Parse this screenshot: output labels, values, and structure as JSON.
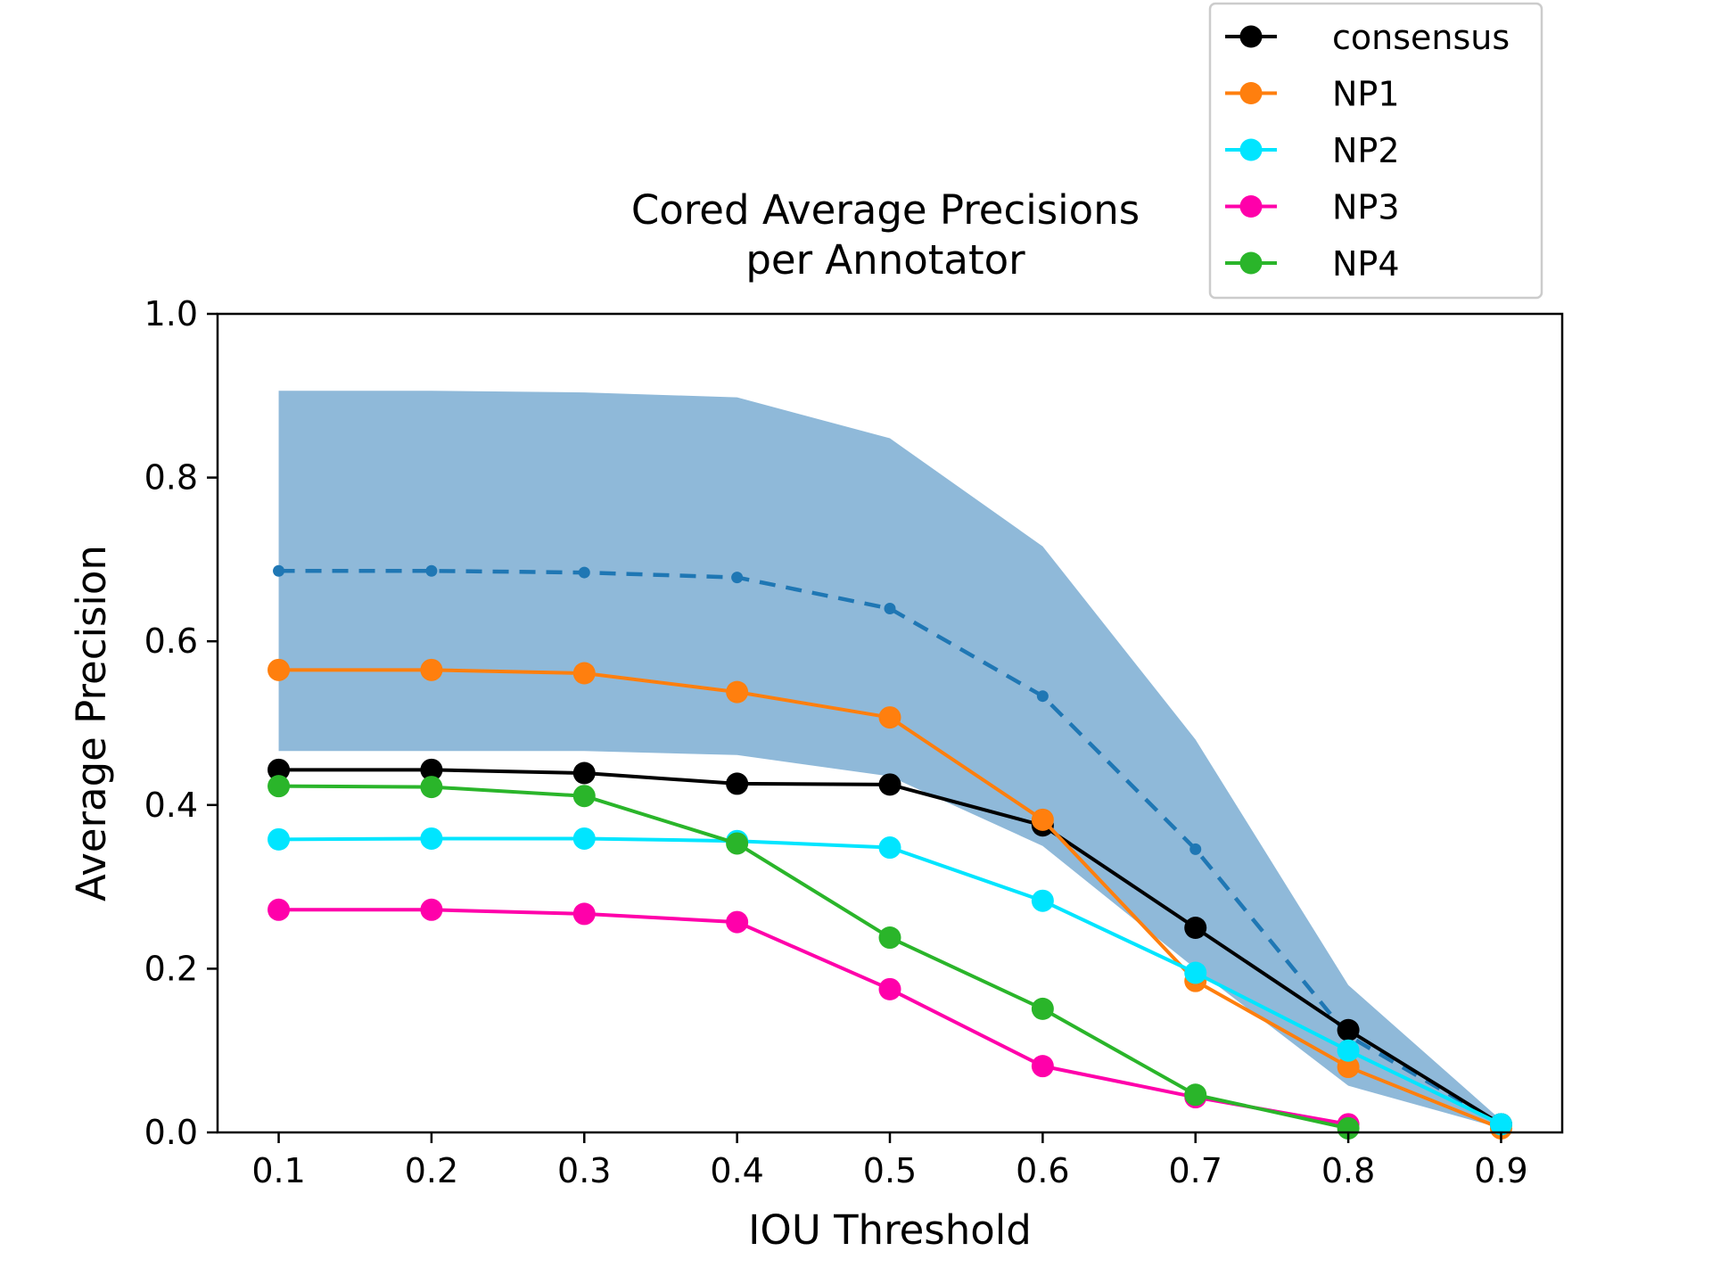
{
  "chart_data": {
    "type": "line",
    "title": "Cored Average Precisions per Annotator",
    "title_lines": [
      "Cored Average Precisions",
      "per Annotator"
    ],
    "xlabel": "IOU Threshold",
    "ylabel": "Average Precision",
    "xlim": [
      0.06,
      0.94
    ],
    "ylim": [
      0.0,
      1.0
    ],
    "x": [
      0.1,
      0.2,
      0.3,
      0.4,
      0.5,
      0.6,
      0.7,
      0.8,
      0.9
    ],
    "x_tick_labels": [
      "0.1",
      "0.2",
      "0.3",
      "0.4",
      "0.5",
      "0.6",
      "0.7",
      "0.8",
      "0.9"
    ],
    "y_ticks": [
      0.0,
      0.2,
      0.4,
      0.6,
      0.8,
      1.0
    ],
    "y_tick_labels": [
      "0.0",
      "0.2",
      "0.4",
      "0.6",
      "0.8",
      "1.0"
    ],
    "grid": false,
    "legend_position": "upper-right (above axes)",
    "band": {
      "color": "#8fb9d9",
      "upper": [
        0.906,
        0.906,
        0.904,
        0.898,
        0.848,
        0.716,
        0.48,
        0.18,
        0.015
      ],
      "lower": [
        0.466,
        0.466,
        0.466,
        0.461,
        0.435,
        0.35,
        0.2,
        0.057,
        0.005
      ]
    },
    "mean_line": {
      "color": "#1f77b4",
      "style": "dashed",
      "values": [
        0.686,
        0.686,
        0.684,
        0.678,
        0.64,
        0.533,
        0.346,
        0.118,
        0.01
      ]
    },
    "series": [
      {
        "name": "consensus",
        "color": "#000000",
        "values": [
          0.443,
          0.443,
          0.439,
          0.426,
          0.425,
          0.375,
          0.25,
          0.125,
          0.01
        ]
      },
      {
        "name": "NP1",
        "color": "#ff7f0e",
        "values": [
          0.565,
          0.565,
          0.561,
          0.538,
          0.507,
          0.382,
          0.185,
          0.08,
          0.005
        ]
      },
      {
        "name": "NP2",
        "color": "#00e5ff",
        "values": [
          0.358,
          0.359,
          0.359,
          0.356,
          0.348,
          0.283,
          0.195,
          0.1,
          0.01
        ]
      },
      {
        "name": "NP3",
        "color": "#ff00aa",
        "values": [
          0.272,
          0.272,
          0.267,
          0.257,
          0.175,
          0.081,
          0.043,
          0.01,
          null
        ]
      },
      {
        "name": "NP4",
        "color": "#2ab52a",
        "values": [
          0.423,
          0.422,
          0.411,
          0.353,
          0.238,
          0.151,
          0.046,
          0.005,
          null
        ]
      }
    ]
  }
}
